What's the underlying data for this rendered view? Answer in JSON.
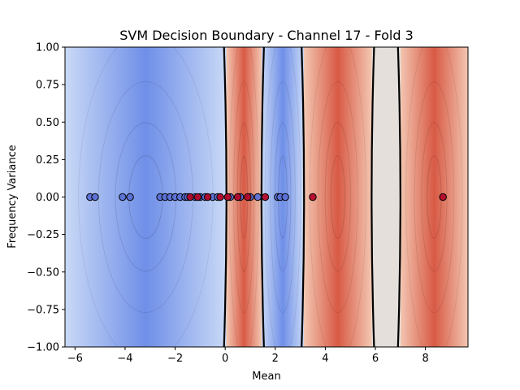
{
  "chart_data": {
    "type": "scatter",
    "title": "SVM Decision Boundary - Channel 17 - Fold 3",
    "xlabel": "Mean",
    "ylabel": "Frequency Variance",
    "xlim": [
      -6.4,
      9.7
    ],
    "ylim": [
      -1.0,
      1.0
    ],
    "x_ticks": [
      -6,
      -4,
      -2,
      0,
      2,
      4,
      6,
      8
    ],
    "x_tick_labels": [
      "−6",
      "−4",
      "−2",
      "0",
      "2",
      "4",
      "6",
      "8"
    ],
    "y_ticks": [
      -1.0,
      -0.75,
      -0.5,
      -0.25,
      0.0,
      0.25,
      0.5,
      0.75,
      1.0
    ],
    "y_tick_labels": [
      "−1.00",
      "−0.75",
      "−0.50",
      "−0.25",
      "0.00",
      "0.25",
      "0.50",
      "0.75",
      "1.00"
    ],
    "grid": false,
    "decision_boundaries_x": [
      0.05,
      1.45,
      3.15,
      5.85,
      7.0
    ],
    "background_bands": [
      {
        "from": -6.4,
        "to": 0.05,
        "class": "blue"
      },
      {
        "from": 0.05,
        "to": 1.45,
        "class": "red"
      },
      {
        "from": 1.45,
        "to": 3.15,
        "class": "blue"
      },
      {
        "from": 3.15,
        "to": 5.85,
        "class": "red"
      },
      {
        "from": 5.85,
        "to": 7.0,
        "class": "neutral"
      },
      {
        "from": 7.0,
        "to": 9.7,
        "class": "red"
      }
    ],
    "series": [
      {
        "color": "#5a6fd4",
        "points": [
          [
            -5.4,
            0
          ],
          [
            -5.2,
            0
          ],
          [
            -4.1,
            0
          ],
          [
            -3.8,
            0
          ],
          [
            -2.6,
            0
          ],
          [
            -2.4,
            0
          ],
          [
            -2.2,
            0
          ],
          [
            -2.0,
            0
          ],
          [
            -1.8,
            0
          ],
          [
            -1.6,
            0
          ],
          [
            -1.5,
            0
          ],
          [
            -1.2,
            0
          ],
          [
            -1.0,
            0
          ],
          [
            -0.8,
            0
          ],
          [
            -0.5,
            0
          ],
          [
            -0.3,
            0
          ],
          [
            0.2,
            0
          ],
          [
            0.6,
            0
          ],
          [
            1.0,
            0
          ],
          [
            1.3,
            0
          ],
          [
            2.1,
            0
          ],
          [
            2.2,
            0
          ],
          [
            2.4,
            0
          ]
        ]
      },
      {
        "color": "#b4072a",
        "points": [
          [
            -1.4,
            0
          ],
          [
            -1.1,
            0
          ],
          [
            -0.7,
            0
          ],
          [
            -0.2,
            0
          ],
          [
            0.1,
            0
          ],
          [
            0.5,
            0
          ],
          [
            0.9,
            0
          ],
          [
            1.6,
            0
          ],
          [
            3.5,
            0
          ],
          [
            8.7,
            0
          ]
        ]
      }
    ]
  }
}
